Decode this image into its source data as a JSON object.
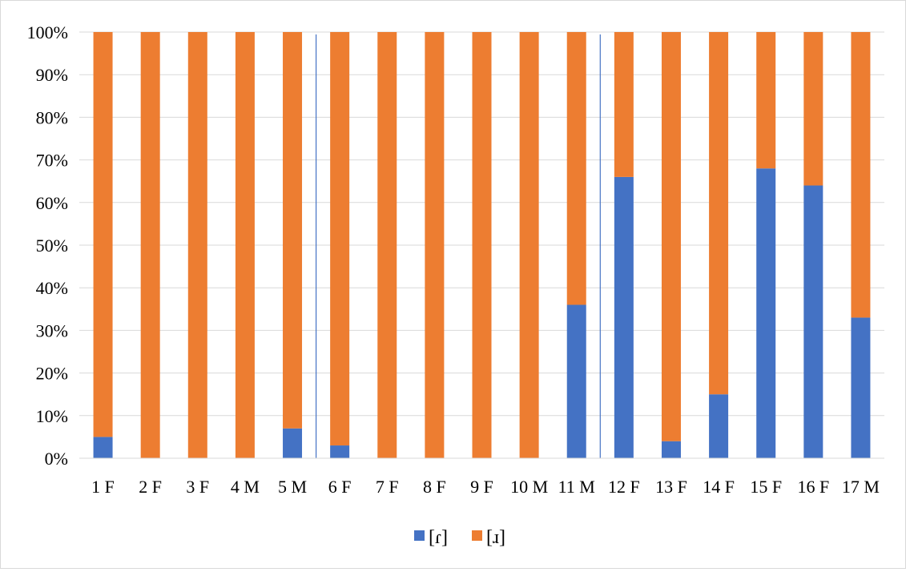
{
  "chart_data": {
    "type": "bar",
    "stacked": true,
    "percent_stacked": true,
    "categories": [
      "1 F",
      "2 F",
      "3 F",
      "4 M",
      "5 M",
      "6 F",
      "7 F",
      "8 F",
      "9 F",
      "10 M",
      "11 M",
      "12 F",
      "13 F",
      "14 F",
      "15 F",
      "16 F",
      "17 M"
    ],
    "series": [
      {
        "name": "[ɾ]",
        "color": "#4472c4",
        "values": [
          5,
          0,
          0,
          0,
          7,
          3,
          0,
          0,
          0,
          0,
          36,
          66,
          4,
          15,
          68,
          64,
          33
        ]
      },
      {
        "name": "[ɹ]",
        "color": "#ed7d31",
        "values": [
          95,
          100,
          100,
          100,
          93,
          97,
          100,
          100,
          100,
          100,
          64,
          34,
          96,
          85,
          32,
          36,
          67
        ]
      }
    ],
    "y_ticks": [
      "0%",
      "10%",
      "20%",
      "30%",
      "40%",
      "50%",
      "60%",
      "70%",
      "80%",
      "90%",
      "100%"
    ],
    "ylim": [
      0,
      100
    ],
    "grid": true,
    "legend_position": "bottom",
    "group_dividers_after": [
      "5 M",
      "11 M"
    ],
    "divider_color": "#4472c4",
    "title": "",
    "xlabel": "",
    "ylabel": ""
  }
}
